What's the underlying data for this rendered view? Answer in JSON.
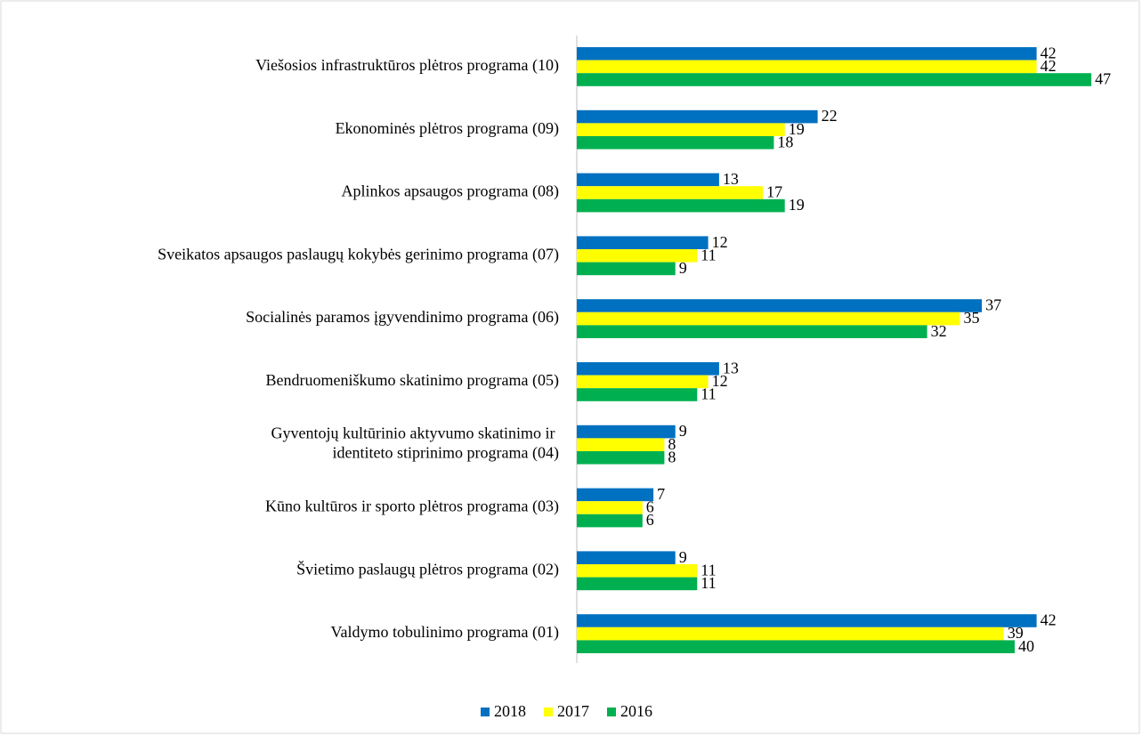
{
  "chart_data": {
    "type": "bar",
    "orientation": "horizontal",
    "categories": [
      "Viešosios infrastruktūros plėtros programa (10)",
      "Ekonominės plėtros programa (09)",
      "Aplinkos apsaugos programa (08)",
      "Sveikatos apsaugos paslaugų kokybės gerinimo programa (07)",
      "Socialinės paramos įgyvendinimo programa (06)",
      "Bendruomeniškumo skatinimo programa (05)",
      "Gyventojų kultūrinio aktyvumo skatinimo ir identiteto stiprinimo programa (04)",
      "Kūno kultūros ir sporto plėtros programa (03)",
      "Švietimo paslaugų plėtros programa (02)",
      "Valdymo tobulinimo programa (01)"
    ],
    "series": [
      {
        "name": "2018",
        "color": "#0070c0",
        "values": [
          42,
          22,
          13,
          12,
          37,
          13,
          9,
          7,
          9,
          42
        ]
      },
      {
        "name": "2017",
        "color": "#ffff00",
        "values": [
          42,
          19,
          17,
          11,
          35,
          12,
          8,
          6,
          11,
          39
        ]
      },
      {
        "name": "2016",
        "color": "#00b050",
        "values": [
          47,
          18,
          19,
          9,
          32,
          11,
          8,
          6,
          11,
          40
        ]
      }
    ],
    "xlim": [
      0,
      50
    ],
    "legend": "bottom"
  }
}
